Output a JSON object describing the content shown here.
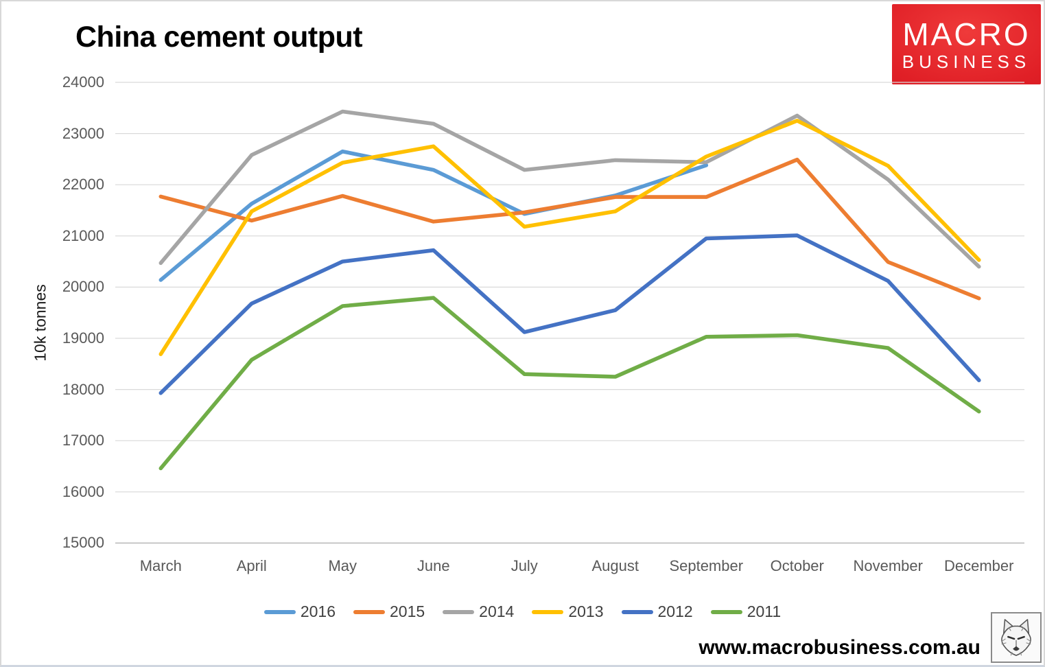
{
  "header": {
    "title": "China cement output",
    "logo": {
      "line1": "MACRO",
      "line2": "BUSINESS",
      "bg_color": "#E01F26",
      "text_color": "#FFFFFF"
    }
  },
  "chart_data": {
    "type": "line",
    "title": "China cement output",
    "y_axis_title": "10k tonnes",
    "ylim": [
      15000,
      24000
    ],
    "y_ticks": [
      24000,
      23000,
      22000,
      21000,
      20000,
      19000,
      18000,
      17000,
      16000,
      15000
    ],
    "categories": [
      "March",
      "April",
      "May",
      "June",
      "July",
      "August",
      "September",
      "October",
      "November",
      "December"
    ],
    "grid": true,
    "grid_color": "#D9D9D9",
    "axis_color": "#BFBFBF",
    "tick_label_color": "#595959",
    "legend_position": "bottom",
    "series": [
      {
        "name": "2016",
        "color": "#5B9BD5",
        "values": [
          20140,
          21630,
          22650,
          22290,
          21430,
          21790,
          22380,
          null,
          null,
          null
        ]
      },
      {
        "name": "2015",
        "color": "#ED7D31",
        "values": [
          21770,
          21300,
          21780,
          21280,
          21460,
          21760,
          21760,
          22490,
          20490,
          19780
        ]
      },
      {
        "name": "2014",
        "color": "#A5A5A5",
        "values": [
          20470,
          22580,
          23430,
          23190,
          22290,
          22480,
          22440,
          23350,
          22100,
          20400
        ]
      },
      {
        "name": "2013",
        "color": "#FFC000",
        "values": [
          18690,
          21480,
          22430,
          22750,
          21180,
          21480,
          22550,
          23250,
          22370,
          20530
        ]
      },
      {
        "name": "2012",
        "color": "#4472C4",
        "values": [
          17930,
          19680,
          20500,
          20720,
          19120,
          19550,
          20950,
          21010,
          20120,
          18180
        ]
      },
      {
        "name": "2011",
        "color": "#70AD47",
        "values": [
          16460,
          18580,
          19630,
          19790,
          18300,
          18250,
          19030,
          19060,
          18810,
          17570
        ]
      }
    ]
  },
  "footer": {
    "url": "www.macrobusiness.com.au",
    "logo_icon": "wolf-sketch-icon"
  }
}
